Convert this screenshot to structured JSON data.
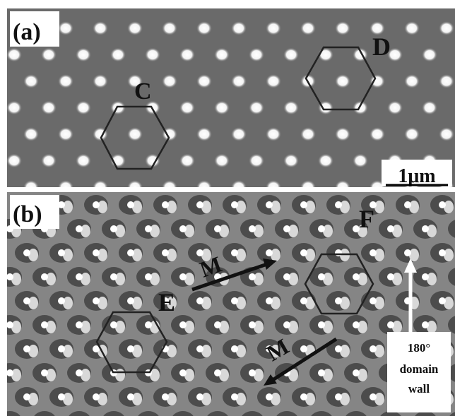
{
  "panel_a": {
    "label": "(a)",
    "markers": [
      "C",
      "D"
    ],
    "scale_bar": "1μm"
  },
  "panel_b": {
    "label": "(b)",
    "markers": [
      "E",
      "F"
    ],
    "arrows": [
      "M",
      "M"
    ],
    "annotation": [
      "180°",
      "domain",
      "wall"
    ]
  }
}
